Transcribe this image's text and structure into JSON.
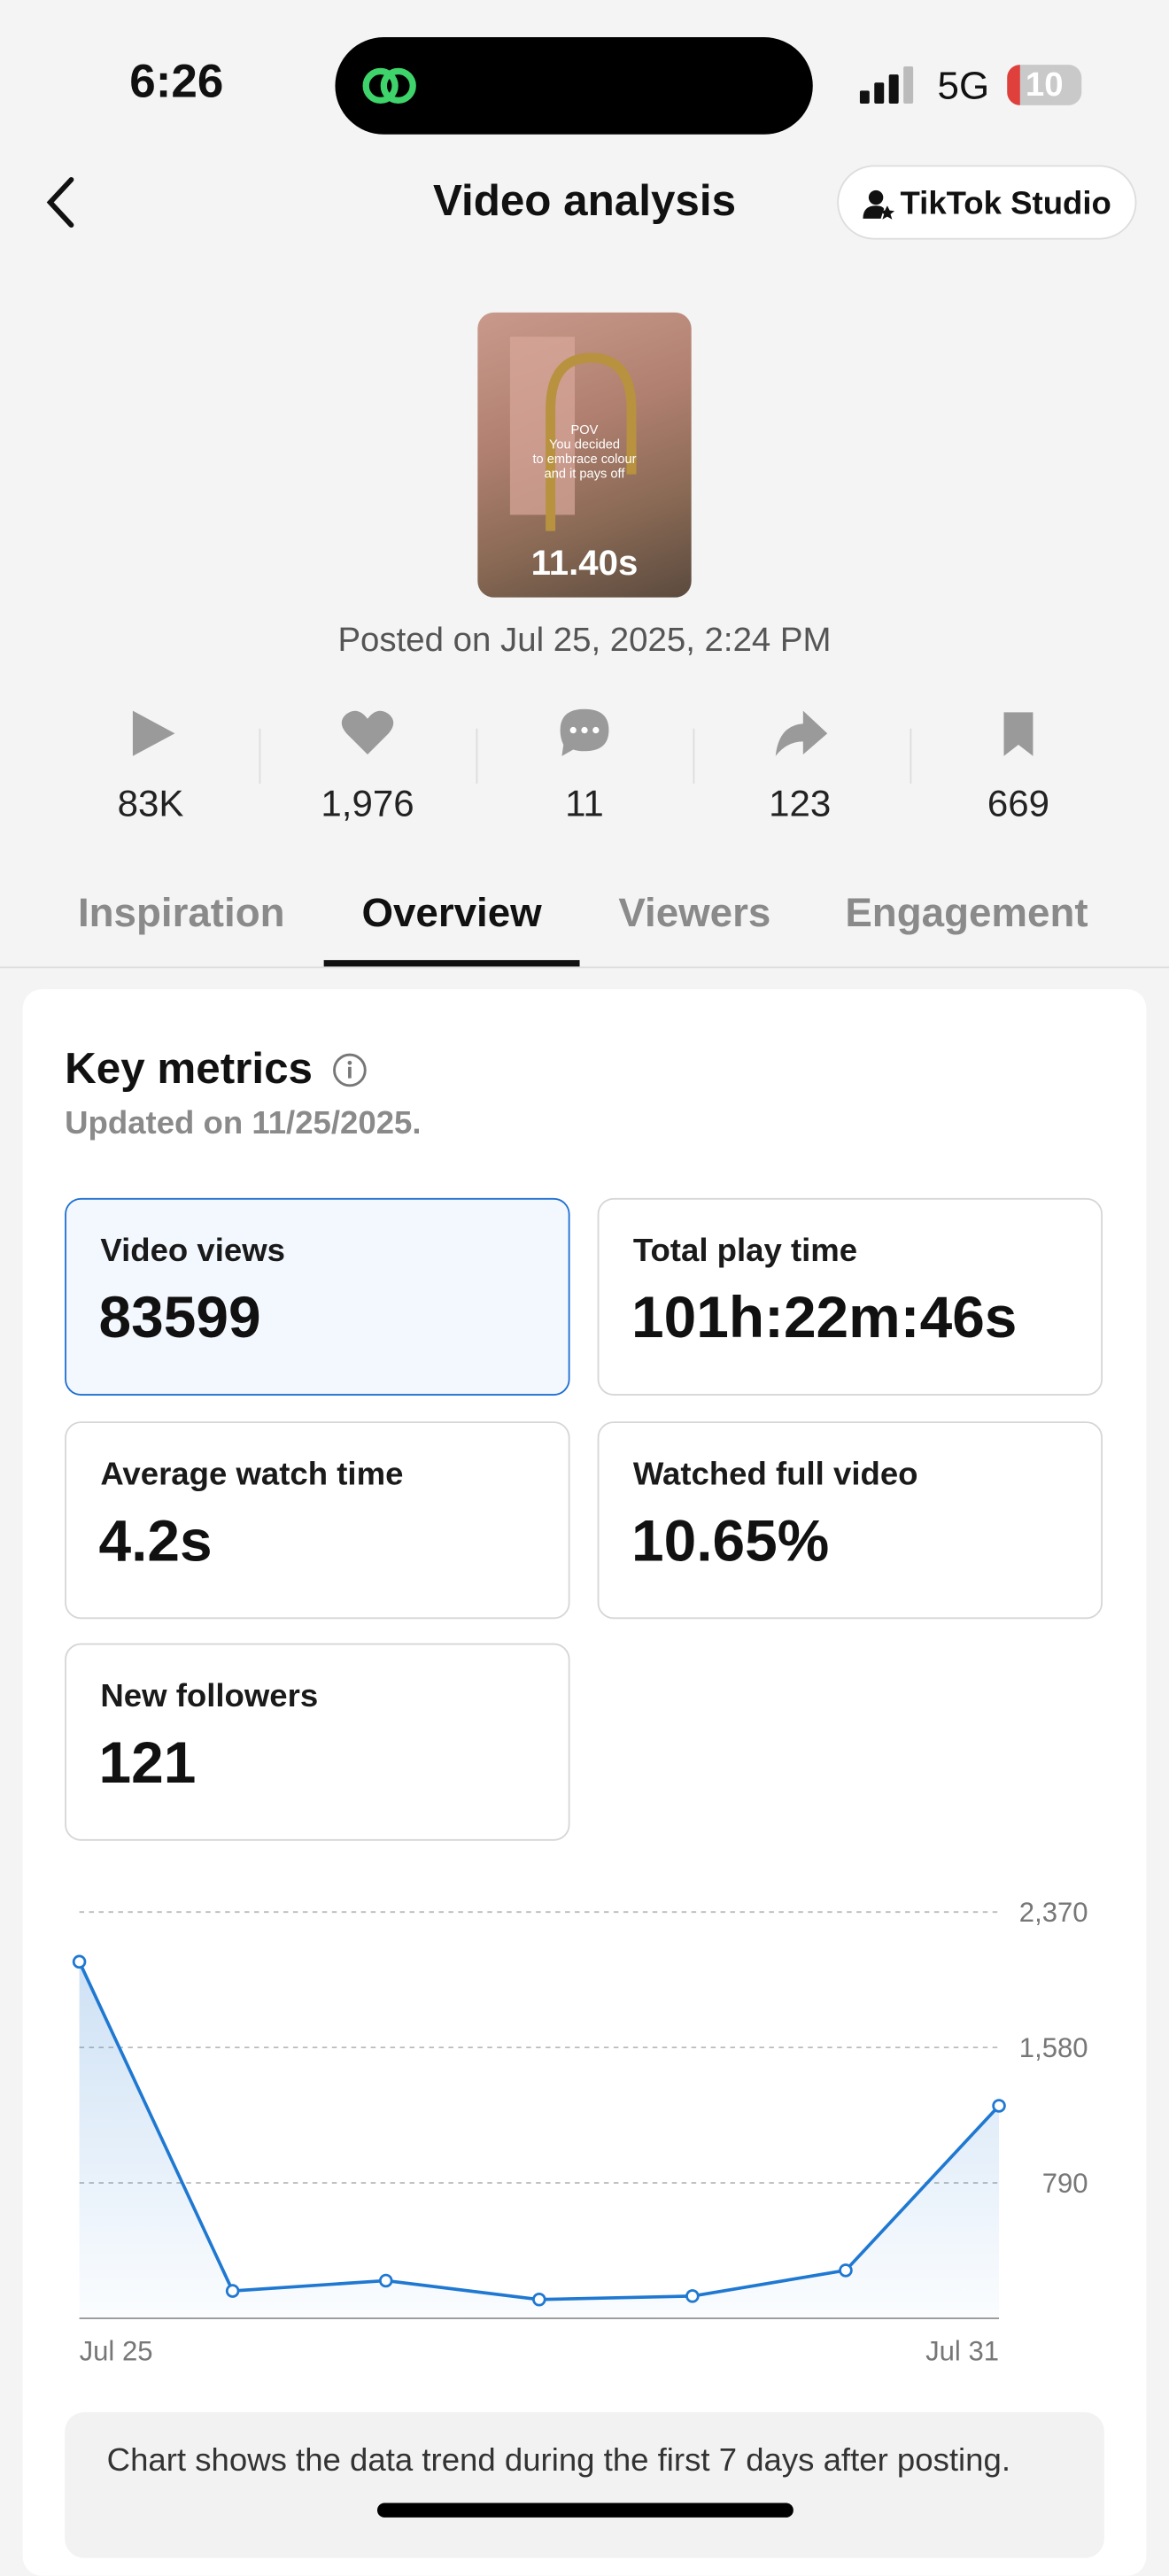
{
  "status_bar": {
    "time": "6:26",
    "network": "5G",
    "battery": "10"
  },
  "header": {
    "title": "Video analysis",
    "button": "TikTok Studio"
  },
  "video": {
    "overlay_text": [
      "POV",
      "You decided",
      "to embrace colour",
      "and it pays off"
    ],
    "duration": "11.40s",
    "posted": "Posted on Jul 25, 2025, 2:24 PM"
  },
  "stats": [
    "83K",
    "1,976",
    "11",
    "123",
    "669"
  ],
  "tabs": [
    "Inspiration",
    "Overview",
    "Viewers",
    "Engagement"
  ],
  "key_metrics": {
    "title": "Key metrics",
    "updated": "Updated on 11/25/2025.",
    "metrics": [
      {
        "label": "Video views",
        "value": "83599"
      },
      {
        "label": "Total play time",
        "value": "101h:22m:46s"
      },
      {
        "label": "Average watch time",
        "value": "4.2s"
      },
      {
        "label": "Watched full video",
        "value": "10.65%"
      },
      {
        "label": "New followers",
        "value": "121"
      }
    ]
  },
  "chart_data": {
    "type": "line",
    "categories": [
      "Jul 25",
      null,
      null,
      null,
      null,
      null,
      "Jul 31"
    ],
    "values": [
      2080,
      160,
      220,
      110,
      130,
      280,
      1240
    ],
    "color": "#1f78d1",
    "ylim": [
      0,
      2370
    ],
    "yticks": [
      {
        "value": 2370,
        "label": "2,370"
      },
      {
        "value": 1580,
        "label": "1,580"
      },
      790
    ],
    "grid": true
  },
  "note": "Chart shows the data trend during the first 7 days after posting."
}
